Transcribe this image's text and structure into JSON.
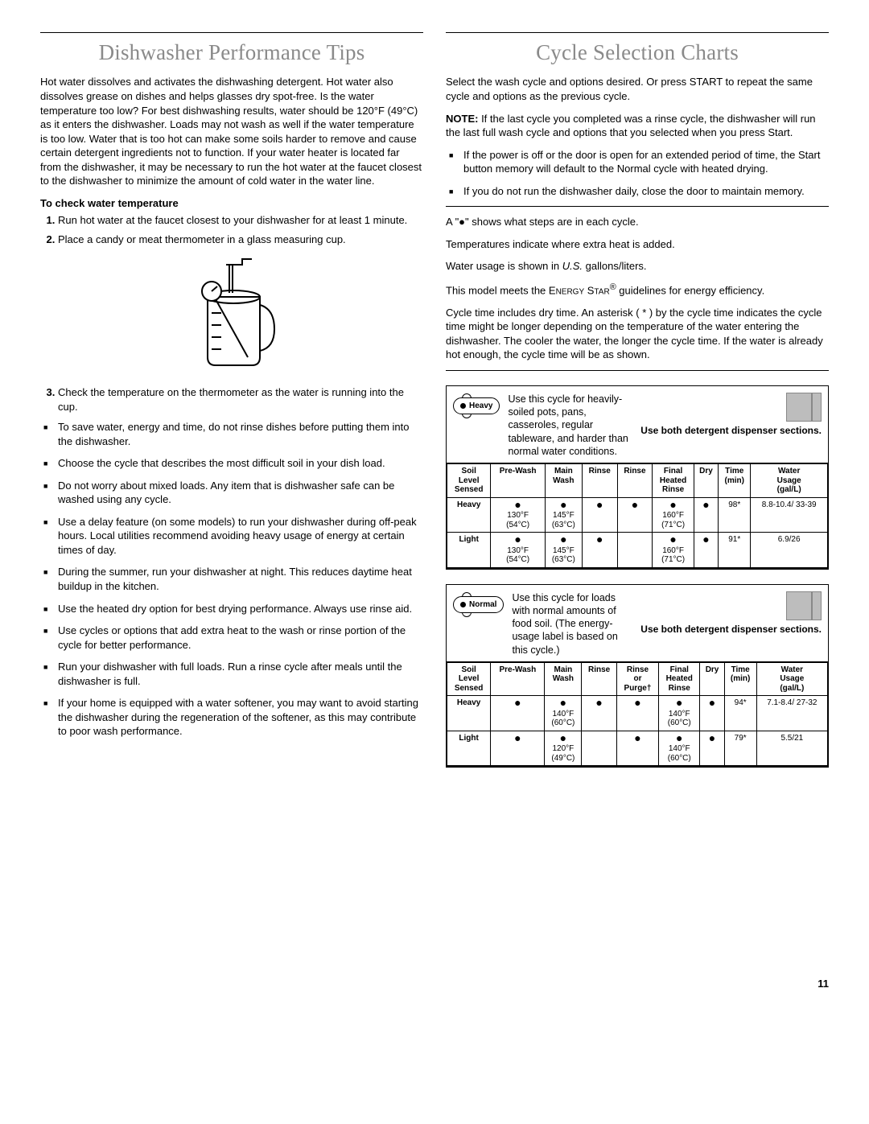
{
  "page_number": "11",
  "left": {
    "title": "Dishwasher Performance Tips",
    "intro": "Hot water dissolves and activates the dishwashing detergent. Hot water also dissolves grease on dishes and helps glasses dry spot-free. Is the water temperature too low? For best dishwashing results, water should be 120°F (49°C) as it enters the dishwasher. Loads may not wash as well if the water temperature is too low. Water that is too hot can make some soils harder to remove and cause certain detergent ingredients not to function. If your water heater is located far from the dishwasher, it may be necessary to run the hot water at the faucet closest to the dishwasher to minimize the amount of cold water in the water line.",
    "subhead": "To check water temperature",
    "steps": [
      "Run hot water at the faucet closest to your dishwasher for at least 1 minute.",
      "Place a candy or meat thermometer in a glass measuring cup."
    ],
    "step3": "Check the temperature on the thermometer as the water is running into the cup.",
    "bullets": [
      "To save water, energy and time, do not rinse dishes before putting them into the dishwasher.",
      "Choose the cycle that describes the most difficult soil in your dish load.",
      "Do not worry about mixed loads. Any item that is dishwasher safe can be washed using any cycle.",
      "Use a delay feature (on some models) to run your dishwasher during off-peak hours. Local utilities recommend avoiding heavy usage of energy at certain times of day.",
      "During the summer, run your dishwasher at night. This reduces daytime heat buildup in the kitchen.",
      "Use the heated dry option for best drying performance. Always use rinse aid.",
      "Use cycles or options that add extra heat to the wash or rinse portion of the cycle for better performance.",
      "Run your dishwasher with full loads. Run a rinse cycle after meals until the dishwasher is full.",
      "If your home is equipped with a water softener, you may want to avoid starting the dishwasher during the regeneration of the softener, as this may contribute to poor wash performance."
    ]
  },
  "right": {
    "title": "Cycle Selection Charts",
    "p1": "Select the wash cycle and options desired. Or press START to repeat the same cycle and options as the previous cycle.",
    "note_label": "NOTE:",
    "note": " If the last cycle you completed was a rinse cycle, the dishwasher will run the last full wash cycle and options that you selected when you press Start.",
    "upper_bullets": [
      "If the power is off or the door is open for an extended period of time, the Start button memory will default to the Normal cycle with heated drying.",
      "If you do not run the dishwasher daily, close the door to maintain memory."
    ],
    "legend": [
      "A \"●\" shows what steps are in each cycle.",
      "Temperatures indicate where extra heat is added.",
      "Water usage is shown in U.S. gallons/liters.",
      "This model meets the ENERGY STAR® guidelines for energy efficiency.",
      "Cycle time includes dry time. An asterisk ( * ) by the cycle time indicates the cycle time might be longer depending on the temperature of the water entering the dishwasher. The cooler the water, the longer the cycle time. If the water is already hot enough, the cycle time will be as shown."
    ],
    "heavy": {
      "badge": "Heavy",
      "desc": "Use this cycle for heavily-soiled pots, pans, casseroles, regular tableware, and harder than normal water conditions.",
      "disp": "Use both detergent dispenser sections.",
      "headers": [
        "Soil Level Sensed",
        "Pre-Wash",
        "Main Wash",
        "Rinse",
        "Rinse",
        "Final Heated Rinse",
        "Dry",
        "Time (min)",
        "Water Usage (gal/L)"
      ],
      "rows": [
        {
          "label": "Heavy",
          "cells": [
            "●\n130°F\n(54°C)",
            "●\n145°F\n(63°C)",
            "●",
            "●",
            "●\n160°F\n(71°C)",
            "●",
            "98*",
            "8.8-10.4/ 33-39"
          ]
        },
        {
          "label": "Light",
          "cells": [
            "●\n130°F\n(54°C)",
            "●\n145°F\n(63°C)",
            "●",
            "",
            "●\n160°F\n(71°C)",
            "●",
            "91*",
            "6.9/26"
          ]
        }
      ]
    },
    "normal": {
      "badge": "Normal",
      "desc": "Use this cycle for loads with normal amounts of food soil. (The energy-usage label is based on this cycle.)",
      "disp": "Use both detergent dispenser sections.",
      "headers": [
        "Soil Level Sensed",
        "Pre-Wash",
        "Main Wash",
        "Rinse",
        "Rinse or Purge†",
        "Final Heated Rinse",
        "Dry",
        "Time (min)",
        "Water Usage (gal/L)"
      ],
      "rows": [
        {
          "label": "Heavy",
          "cells": [
            "●",
            "●\n140°F\n(60°C)",
            "●",
            "●",
            "●\n140°F\n(60°C)",
            "●",
            "94*",
            "7.1-8.4/ 27-32"
          ]
        },
        {
          "label": "Light",
          "cells": [
            "●",
            "●\n120°F\n(49°C)",
            "",
            "●",
            "●\n140°F\n(60°C)",
            "●",
            "79*",
            "5.5/21"
          ]
        }
      ]
    }
  }
}
